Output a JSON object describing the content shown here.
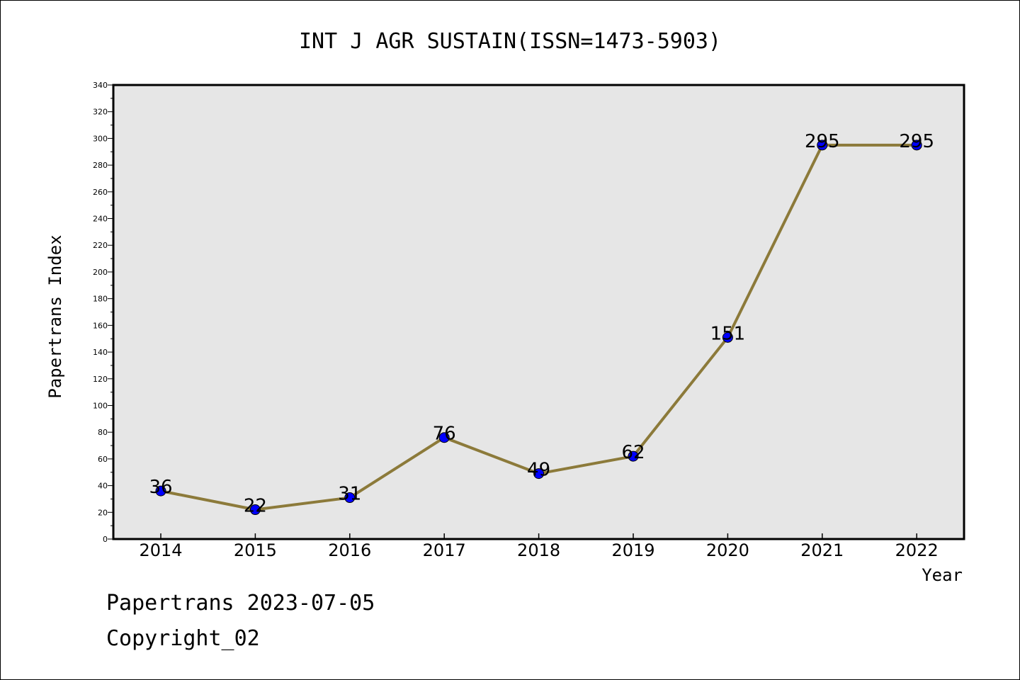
{
  "chart_data": {
    "type": "line",
    "title": "INT J AGR SUSTAIN(ISSN=1473-5903)",
    "xlabel": "Year",
    "ylabel": "Papertrans Index",
    "categories": [
      "2014",
      "2015",
      "2016",
      "2017",
      "2018",
      "2019",
      "2020",
      "2021",
      "2022"
    ],
    "values": [
      36,
      22,
      31,
      76,
      49,
      62,
      151,
      295,
      295
    ],
    "data_labels": [
      "36",
      "22",
      "31",
      "76",
      "49",
      "62",
      "151",
      "295",
      "295"
    ],
    "ylim": [
      0,
      340
    ],
    "yticks": [
      0,
      20,
      40,
      60,
      80,
      100,
      120,
      140,
      160,
      180,
      200,
      220,
      240,
      260,
      280,
      300,
      320,
      340
    ],
    "grid": false,
    "colors": {
      "line": "#8c7a3a",
      "marker": "#0000ff",
      "plot_bg": "#e6e6e6",
      "frame": "#000000"
    }
  },
  "footer": {
    "line1": "Papertrans 2023-07-05",
    "line2": "Copyright_02"
  }
}
